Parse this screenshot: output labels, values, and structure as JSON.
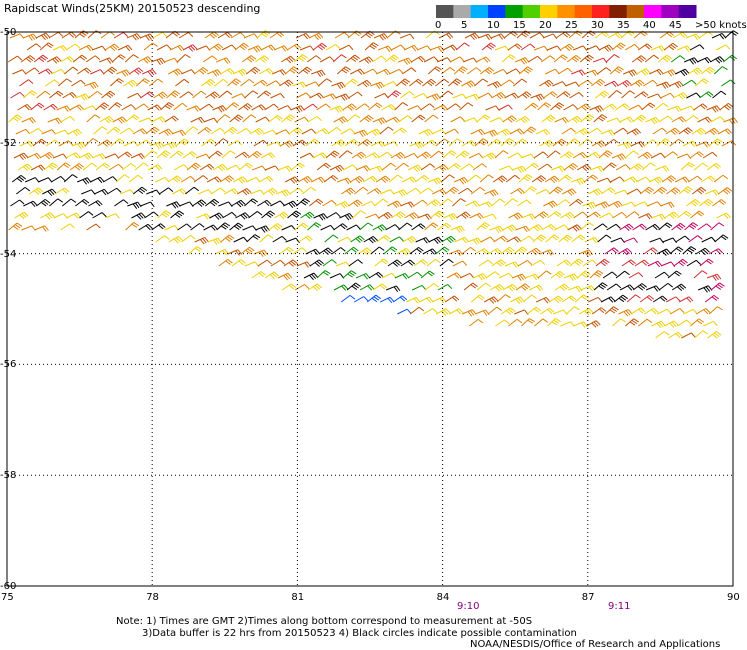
{
  "title": "Rapidscat Winds(25KM) 20150523 descending",
  "legend": {
    "colors": [
      "#555555",
      "#aaaaaa",
      "#00b0ff",
      "#0040ff",
      "#00a000",
      "#50d000",
      "#ffd000",
      "#ff9000",
      "#ff6000",
      "#ff2020",
      "#802000",
      "#c06000",
      "#ff00ff",
      "#a000c0",
      "#5000a0"
    ],
    "labels": [
      "0",
      "5",
      "10",
      "15",
      "20",
      "25",
      "30",
      "35",
      "40",
      "45",
      ">50 knots"
    ]
  },
  "y_axis": {
    "labels": [
      "-50",
      "-52",
      "-54",
      "-56",
      "-58",
      "-60"
    ]
  },
  "x_axis": {
    "labels": [
      "75",
      "78",
      "81",
      "84",
      "87",
      "90"
    ]
  },
  "times": [
    "9:10",
    "9:11"
  ],
  "notes": {
    "line1": "Note: 1) Times are GMT 2)Times along bottom correspond to measurement at -50S",
    "line2": "3)Data buffer is 22 hrs from 20150523 4) Black circles indicate possible contamination",
    "line3": "NOAA/NESDIS/Office of Research and Applications"
  },
  "map": {
    "lon_range": [
      75,
      90
    ],
    "lat_range": [
      -60,
      -50
    ],
    "barb_colors": {
      "calm": "#000000",
      "green": "#009000",
      "blue": "#0050ff",
      "yellow": "#f0d000",
      "orange": "#e08000",
      "darkorange": "#c05000",
      "red": "#d03030",
      "magenta": "#c00060"
    }
  }
}
